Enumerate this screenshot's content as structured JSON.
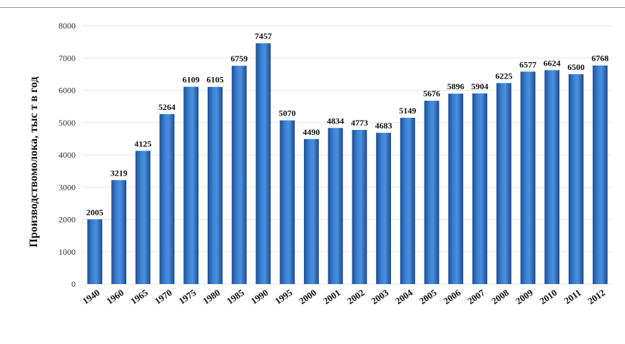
{
  "chart_data": {
    "type": "bar",
    "title": "",
    "xlabel": "",
    "ylabel": "Производствомолока, тыс т в год",
    "ylim": [
      0,
      8000
    ],
    "yticks": [
      0,
      1000,
      2000,
      3000,
      4000,
      5000,
      6000,
      7000,
      8000
    ],
    "grid": true,
    "legend": "none",
    "bar_color": "#2f6fc0",
    "categories": [
      "1940",
      "1960",
      "1965",
      "1970",
      "1975",
      "1980",
      "1985",
      "1990",
      "1995",
      "2000",
      "2001",
      "2002",
      "2003",
      "2004",
      "2005",
      "2006",
      "2007",
      "2008",
      "2009",
      "2010",
      "2011",
      "2012"
    ],
    "values": [
      2005,
      3219,
      4125,
      5264,
      6109,
      6105,
      6759,
      7457,
      5070,
      4490,
      4834,
      4773,
      4683,
      5149,
      5676,
      5896,
      5904,
      6225,
      6577,
      6624,
      6500,
      6768
    ],
    "data_labels": [
      "2005",
      "3219",
      "4125",
      "5264",
      "6109",
      "6105",
      "6759",
      "7457",
      "5070",
      "4490",
      "4834",
      "4773",
      "4683",
      "5149",
      "5676",
      "5896",
      "5904",
      "6225",
      "6577",
      "6624",
      "6500",
      "6768"
    ]
  }
}
